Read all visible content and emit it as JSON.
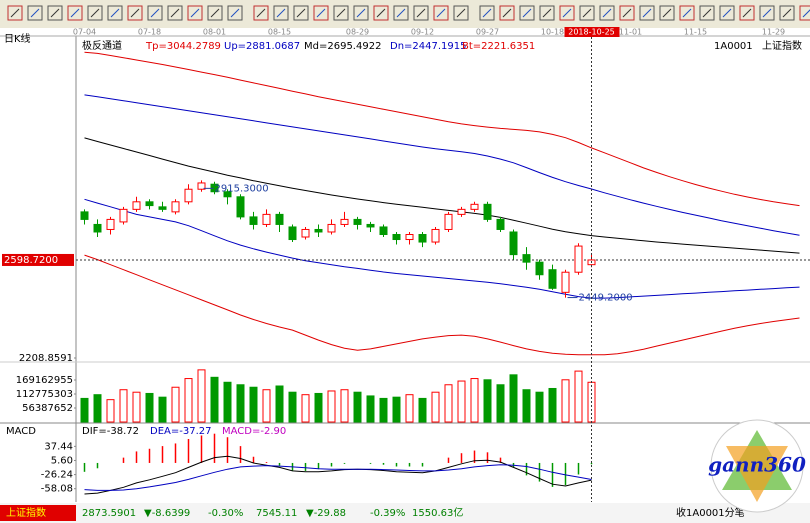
{
  "period": "日K线",
  "symbol": "1A0001",
  "symbol_name": "上证指数",
  "watermark": "gann360",
  "chart_data": [
    {
      "type": "candlestick",
      "title": "极反通道",
      "categories": [
        "07-04",
        null,
        null,
        null,
        null,
        "07-18",
        null,
        null,
        null,
        null,
        "08-01",
        null,
        null,
        null,
        null,
        "08-15",
        null,
        null,
        null,
        null,
        null,
        "08-29",
        null,
        null,
        null,
        null,
        "09-12",
        null,
        null,
        null,
        null,
        "09-27",
        null,
        null,
        null,
        null,
        "10-18",
        null,
        null,
        "2018-10-25",
        null,
        null,
        "11-01",
        null,
        null,
        null,
        null,
        "11-15",
        null,
        null,
        null,
        null,
        null,
        "11-29",
        null,
        null
      ],
      "open": [
        2790,
        2740,
        2720,
        2750,
        2800,
        2830,
        2810,
        2790,
        2830,
        2880,
        2900,
        2870,
        2850,
        2770,
        2740,
        2780,
        2730,
        2690,
        2720,
        2710,
        2740,
        2760,
        2740,
        2730,
        2700,
        2680,
        2700,
        2670,
        2720,
        2780,
        2800,
        2820,
        2760,
        2710,
        2620,
        2590,
        2560,
        2470,
        2550,
        2580,
        null,
        null,
        null,
        null,
        null,
        null,
        null,
        null,
        null,
        null,
        null,
        null,
        null,
        null,
        null,
        null
      ],
      "high": [
        2800,
        2760,
        2770,
        2810,
        2850,
        2840,
        2830,
        2840,
        2900,
        2915.3,
        2910,
        2880,
        2860,
        2790,
        2800,
        2790,
        2740,
        2730,
        2740,
        2760,
        2790,
        2770,
        2750,
        2740,
        2710,
        2710,
        2710,
        2730,
        2790,
        2810,
        2830,
        2830,
        2770,
        2720,
        2650,
        2600,
        2580,
        2560,
        2665,
        2620,
        null,
        null,
        null,
        null,
        null,
        null,
        null,
        null,
        null,
        null,
        null,
        null,
        null,
        null,
        null,
        null
      ],
      "low": [
        2740,
        2690,
        2700,
        2740,
        2790,
        2800,
        2790,
        2780,
        2820,
        2870,
        2860,
        2820,
        2760,
        2720,
        2730,
        2710,
        2670,
        2680,
        2690,
        2700,
        2730,
        2720,
        2710,
        2690,
        2660,
        2660,
        2650,
        2660,
        2710,
        2770,
        2790,
        2750,
        2710,
        2600,
        2560,
        2520,
        2480,
        2449.2,
        2540,
        2570,
        null,
        null,
        null,
        null,
        null,
        null,
        null,
        null,
        null,
        null,
        null,
        null,
        null,
        null,
        null,
        null
      ],
      "close": [
        2760,
        2710,
        2760,
        2800,
        2830,
        2815,
        2800,
        2830,
        2880,
        2905,
        2870,
        2850,
        2770,
        2740,
        2780,
        2740,
        2680,
        2720,
        2710,
        2740,
        2760,
        2740,
        2730,
        2700,
        2680,
        2700,
        2670,
        2720,
        2780,
        2800,
        2820,
        2760,
        2720,
        2620,
        2590,
        2540,
        2486,
        2550,
        2654,
        2598.72,
        null,
        null,
        null,
        null,
        null,
        null,
        null,
        null,
        null,
        null,
        null,
        null,
        null,
        null,
        null,
        null
      ],
      "up_color": "#ff0000",
      "down_color": "#009900",
      "series": [
        {
          "name": "Tp=3044.2789",
          "color": "#e00000",
          "values": [
            3425,
            3420,
            3412,
            3403,
            3394,
            3385,
            3376,
            3366,
            3356,
            3346,
            3336,
            3325,
            3314,
            3303,
            3292,
            3281,
            3270,
            3259,
            3248,
            3238,
            3228,
            3218,
            3208,
            3198,
            3188,
            3178,
            3168,
            3158,
            3148,
            3140,
            3133,
            3127,
            3122,
            3118,
            3114,
            3108,
            3098,
            3085,
            3066,
            3044.2789,
            3025,
            3005,
            2985,
            2965,
            2947,
            2930,
            2914,
            2899,
            2885,
            2872,
            2860,
            2849,
            2839,
            2830,
            2822,
            2815
          ]
        },
        {
          "name": "Up=2881.0687",
          "color": "#0000c0",
          "values": [
            3255,
            3248,
            3240,
            3232,
            3224,
            3216,
            3208,
            3200,
            3192,
            3184,
            3176,
            3168,
            3160,
            3152,
            3144,
            3136,
            3128,
            3120,
            3112,
            3104,
            3096,
            3088,
            3080,
            3072,
            3064,
            3056,
            3048,
            3041,
            3035,
            3029,
            3022,
            3012,
            3000,
            2985,
            2966,
            2946,
            2927,
            2910,
            2895,
            2881.0687,
            2866,
            2852,
            2838,
            2825,
            2812,
            2800,
            2788,
            2777,
            2766,
            2755,
            2745,
            2735,
            2725,
            2715,
            2706,
            2697
          ]
        },
        {
          "name": "Md=2695.4922",
          "color": "#000000",
          "values": [
            3084,
            3070,
            3056,
            3042,
            3028,
            3014,
            3000,
            2986,
            2972,
            2960,
            2948,
            2936,
            2925,
            2914,
            2904,
            2894,
            2884,
            2875,
            2866,
            2857,
            2849,
            2841,
            2834,
            2827,
            2820,
            2814,
            2808,
            2802,
            2796,
            2790,
            2784,
            2777,
            2768,
            2757,
            2745,
            2733,
            2721,
            2711,
            2703,
            2695.4922,
            2690,
            2685,
            2680,
            2675,
            2670,
            2666,
            2662,
            2658,
            2654,
            2650,
            2646,
            2642,
            2638,
            2634,
            2630,
            2626
          ]
        },
        {
          "name": "Dn=2447.1915",
          "color": "#0000c0",
          "values": [
            2840,
            2825,
            2810,
            2795,
            2780,
            2770,
            2760,
            2750,
            2735,
            2715,
            2695,
            2675,
            2658,
            2643,
            2630,
            2618,
            2606,
            2596,
            2588,
            2580,
            2572,
            2565,
            2558,
            2551,
            2545,
            2540,
            2535,
            2530,
            2525,
            2520,
            2515,
            2510,
            2504,
            2497,
            2490,
            2482,
            2472,
            2462,
            2453,
            2447.1915,
            2447,
            2449,
            2452,
            2455,
            2458,
            2461,
            2464,
            2467,
            2470,
            2473,
            2476,
            2479,
            2482,
            2485,
            2488,
            2491
          ]
        },
        {
          "name": "Bt=2221.6351",
          "color": "#e00000",
          "values": [
            2618,
            2600,
            2580,
            2560,
            2540,
            2520,
            2500,
            2480,
            2460,
            2440,
            2420,
            2400,
            2380,
            2362,
            2346,
            2332,
            2320,
            2300,
            2280,
            2262,
            2248,
            2240,
            2245,
            2255,
            2265,
            2275,
            2285,
            2292,
            2298,
            2300,
            2295,
            2285,
            2272,
            2258,
            2245,
            2235,
            2228,
            2224,
            2222,
            2221.6351,
            2222,
            2226,
            2234,
            2244,
            2256,
            2268,
            2280,
            2292,
            2304,
            2316,
            2327,
            2337,
            2346,
            2354,
            2361,
            2368
          ]
        }
      ],
      "ylim": [
        2208.8591,
        3453.6
      ],
      "yticks": [
        2208.8591
      ],
      "price_line": {
        "value": 2598.72,
        "label": "2598.7200"
      },
      "annotations": [
        {
          "value": 2915.3,
          "label": "2915.3000"
        },
        {
          "value": 2449.2,
          "label": "2449.2000"
        }
      ]
    },
    {
      "type": "bar",
      "values": [
        95000000,
        110000000,
        90000000,
        130000000,
        120000000,
        115000000,
        100000000,
        140000000,
        175000000,
        210000000,
        180000000,
        160000000,
        150000000,
        140000000,
        130000000,
        145000000,
        120000000,
        110000000,
        115000000,
        125000000,
        130000000,
        120000000,
        105000000,
        95000000,
        100000000,
        110000000,
        95000000,
        120000000,
        150000000,
        165000000,
        175000000,
        170000000,
        150000000,
        190000000,
        130000000,
        120000000,
        135000000,
        170000000,
        205000000,
        160000000
      ],
      "ylim": [
        0,
        233606000
      ],
      "yticks": [
        56387652,
        112775303,
        169162955
      ]
    },
    {
      "type": "macd",
      "title": "MACD",
      "series": [
        {
          "name": "DIF=-38.72",
          "color": "#000000",
          "values": [
            -70,
            -68,
            -62,
            -55,
            -45,
            -38,
            -30,
            -22,
            -10,
            2,
            12,
            15,
            10,
            0,
            -5,
            -10,
            -18,
            -20,
            -20,
            -18,
            -15,
            -14,
            -15,
            -17,
            -20,
            -21,
            -22,
            -18,
            -10,
            -2,
            5,
            6,
            2,
            -10,
            -22,
            -35,
            -48,
            -52,
            -45,
            -38.72
          ]
        },
        {
          "name": "DEA=-37.27",
          "color": "#0000c0",
          "values": [
            -60,
            -62,
            -62,
            -61,
            -58,
            -54,
            -49,
            -44,
            -37,
            -29,
            -21,
            -14,
            -9,
            -7,
            -6,
            -7,
            -9,
            -11,
            -13,
            -14,
            -14,
            -14,
            -14,
            -15,
            -16,
            -17,
            -18,
            -18,
            -16,
            -13,
            -9,
            -6,
            -4,
            -5,
            -8,
            -14,
            -21,
            -27,
            -32,
            -37.27
          ]
        }
      ],
      "histogram": {
        "name": "MACD=-2.90",
        "color": "#c000c0",
        "up_color": "#ff0000",
        "down_color": "#009900",
        "values": [
          -20,
          -12,
          0,
          12,
          26,
          32,
          38,
          44,
          54,
          62,
          66,
          58,
          38,
          14,
          2,
          -6,
          -18,
          -18,
          -14,
          -8,
          -2,
          0,
          -2,
          -4,
          -8,
          -8,
          -8,
          0,
          12,
          22,
          28,
          24,
          12,
          -10,
          -28,
          -42,
          -54,
          -50,
          -26,
          -2.9
        ]
      },
      "ylim": [
        -83.55,
        60.79
      ],
      "yticks": [
        37.44,
        {
          "value": 5.6,
          "label": "5.60"
        },
        -26.24,
        -58.08
      ]
    }
  ],
  "status_bar": {
    "index_name": "上证指数",
    "items": [
      "2873.5901",
      "▼-8.6399",
      "-0.30%",
      "7545.11",
      "▼-29.88",
      "-0.39%",
      "1550.63亿"
    ],
    "right": "收1A0001分笔"
  }
}
